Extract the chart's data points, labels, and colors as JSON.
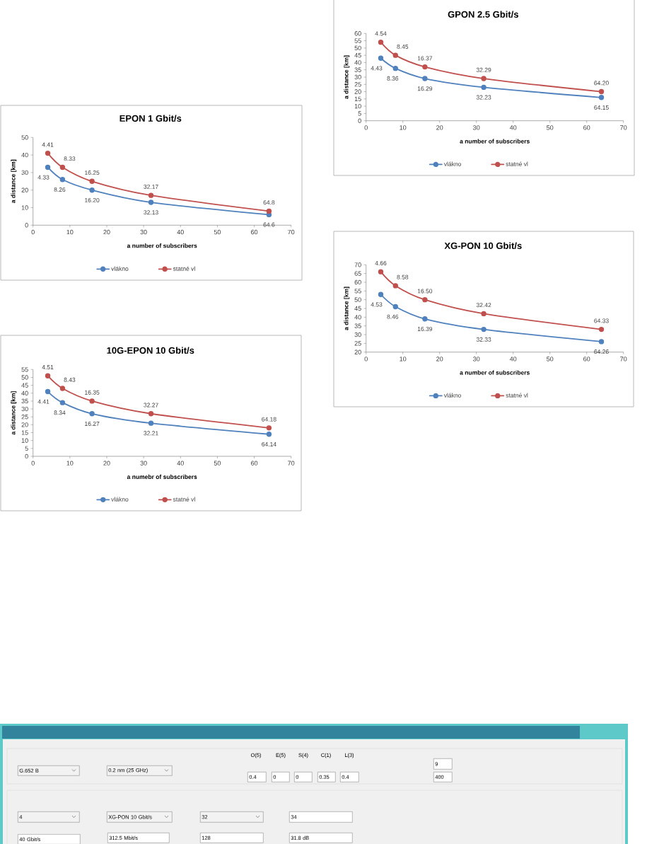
{
  "chart_data": [
    {
      "type": "line",
      "title": "EPON 1 Gbit/s",
      "xlabel": "a number of subscribers",
      "ylabel": "a distance [km]",
      "x": [
        4,
        8,
        16,
        32,
        64
      ],
      "series": [
        {
          "name": "vlákno",
          "color": "#4f81bd",
          "values": [
            33,
            26,
            20,
            13,
            6
          ]
        },
        {
          "name": "statné vl",
          "color": "#c0504d",
          "values": [
            41,
            33,
            25,
            17,
            8
          ]
        }
      ],
      "annotations": [
        {
          "text": "4.33",
          "x": 4,
          "y": 33
        },
        {
          "text": "8.26",
          "x": 8,
          "y": 26
        },
        {
          "text": "16.20",
          "x": 16,
          "y": 20
        },
        {
          "text": "32.13",
          "x": 32,
          "y": 13
        },
        {
          "text": "64.6",
          "x": 64,
          "y": 6
        },
        {
          "text": "4.41",
          "x": 4,
          "y": 41
        },
        {
          "text": "8.33",
          "x": 8,
          "y": 33
        },
        {
          "text": "16.25",
          "x": 16,
          "y": 25
        },
        {
          "text": "32.17",
          "x": 32,
          "y": 17
        },
        {
          "text": "64.8",
          "x": 64,
          "y": 8
        }
      ],
      "xlim": [
        0,
        70
      ],
      "xticks": [
        0,
        10,
        20,
        30,
        40,
        50,
        60,
        70
      ],
      "ylim": [
        0,
        50
      ],
      "yticks": [
        0,
        10,
        20,
        30,
        40,
        50
      ],
      "legend": "bottom",
      "marker": "circle",
      "line_style": "solid"
    },
    {
      "type": "line",
      "title": "10G-EPON 10 Gbit/s",
      "xlabel": "a numebr of subscribers",
      "ylabel": "a distance [km]",
      "x": [
        4,
        8,
        16,
        32,
        64
      ],
      "series": [
        {
          "name": "vlákno",
          "color": "#4f81bd",
          "values": [
            41,
            34,
            27,
            21,
            14
          ]
        },
        {
          "name": "statné vl",
          "color": "#c0504d",
          "values": [
            51,
            43,
            35,
            27,
            18
          ]
        }
      ],
      "annotations": [
        {
          "text": "4.41",
          "x": 4,
          "y": 41
        },
        {
          "text": "8.34",
          "x": 8,
          "y": 34
        },
        {
          "text": "16.27",
          "x": 16,
          "y": 27
        },
        {
          "text": "32.21",
          "x": 32,
          "y": 21
        },
        {
          "text": "64.14",
          "x": 64,
          "y": 14
        },
        {
          "text": "4.51",
          "x": 4,
          "y": 51
        },
        {
          "text": "8.43",
          "x": 8,
          "y": 43
        },
        {
          "text": "16.35",
          "x": 16,
          "y": 35
        },
        {
          "text": "32.27",
          "x": 32,
          "y": 27
        },
        {
          "text": "64.18",
          "x": 64,
          "y": 18
        }
      ],
      "xlim": [
        0,
        70
      ],
      "xticks": [
        0,
        10,
        20,
        30,
        40,
        50,
        60,
        70
      ],
      "ylim": [
        0,
        55
      ],
      "yticks": [
        0,
        5,
        10,
        15,
        20,
        25,
        30,
        35,
        40,
        45,
        50,
        55
      ],
      "legend": "bottom",
      "marker": "circle",
      "line_style": "solid"
    },
    {
      "type": "line",
      "title": "GPON 2.5 Gbit/s",
      "xlabel": "a number of subscribers",
      "ylabel": "a distance [km]",
      "x": [
        4,
        8,
        16,
        32,
        64
      ],
      "series": [
        {
          "name": "vlákno",
          "color": "#4f81bd",
          "values": [
            43,
            36,
            29,
            23,
            16
          ]
        },
        {
          "name": "statné vl",
          "color": "#c0504d",
          "values": [
            54,
            45,
            37,
            29,
            20
          ]
        }
      ],
      "annotations": [
        {
          "text": "4.43",
          "x": 4,
          "y": 43
        },
        {
          "text": "8.36",
          "x": 8,
          "y": 36
        },
        {
          "text": "16.29",
          "x": 16,
          "y": 29
        },
        {
          "text": "32.23",
          "x": 32,
          "y": 23
        },
        {
          "text": "64.15",
          "x": 64,
          "y": 16
        },
        {
          "text": "4.54",
          "x": 4,
          "y": 54
        },
        {
          "text": "8.45",
          "x": 8,
          "y": 45
        },
        {
          "text": "16.37",
          "x": 16,
          "y": 37
        },
        {
          "text": "32.29",
          "x": 32,
          "y": 29
        },
        {
          "text": "64.20",
          "x": 64,
          "y": 20
        }
      ],
      "xlim": [
        0,
        70
      ],
      "xticks": [
        0,
        10,
        20,
        30,
        40,
        50,
        60,
        70
      ],
      "ylim": [
        0,
        60
      ],
      "yticks": [
        0,
        5,
        10,
        15,
        20,
        25,
        30,
        35,
        40,
        45,
        50,
        55,
        60
      ],
      "legend": "bottom",
      "marker": "circle",
      "line_style": "solid"
    },
    {
      "type": "line",
      "title": "XG-PON 10 Gbit/s",
      "xlabel": "a number of subscribers",
      "ylabel": "a distance [km]",
      "x": [
        4,
        8,
        16,
        32,
        64
      ],
      "series": [
        {
          "name": "vlákno",
          "color": "#4f81bd",
          "values": [
            53,
            46,
            39,
            33,
            26
          ]
        },
        {
          "name": "statné vl",
          "color": "#c0504d",
          "values": [
            66,
            58,
            50,
            42,
            33
          ]
        }
      ],
      "annotations": [
        {
          "text": "4.53",
          "x": 4,
          "y": 53
        },
        {
          "text": "8.46",
          "x": 8,
          "y": 46
        },
        {
          "text": "16.39",
          "x": 16,
          "y": 39
        },
        {
          "text": "32.33",
          "x": 32,
          "y": 33
        },
        {
          "text": "64.26",
          "x": 64,
          "y": 26
        },
        {
          "text": "4.66",
          "x": 4,
          "y": 66
        },
        {
          "text": "8.58",
          "x": 8,
          "y": 58
        },
        {
          "text": "16.50",
          "x": 16,
          "y": 50
        },
        {
          "text": "32.42",
          "x": 32,
          "y": 42
        },
        {
          "text": "64.33",
          "x": 64,
          "y": 33
        }
      ],
      "xlim": [
        0,
        70
      ],
      "xticks": [
        0,
        10,
        20,
        30,
        40,
        50,
        60,
        70
      ],
      "ylim": [
        20,
        70
      ],
      "yticks": [
        20,
        25,
        30,
        35,
        40,
        45,
        50,
        55,
        60,
        65,
        70
      ],
      "legend": "bottom",
      "marker": "circle",
      "line_style": "solid"
    },
    {
      "type": "other",
      "annotations": [
        "O(5)",
        "E(5)",
        "S(4)",
        "C(1)",
        "L(3)",
        "G.652 B",
        "0.2 nm (25 GHz)",
        "0.4",
        "0",
        "0",
        "0.35",
        "0.4",
        "9",
        "400",
        "4",
        "XG-PON 10 Gbit/s",
        "32",
        "34",
        "40 Gbit/s",
        "312.5 Mbit/s",
        "128",
        "31.8 dB"
      ]
    }
  ]
}
